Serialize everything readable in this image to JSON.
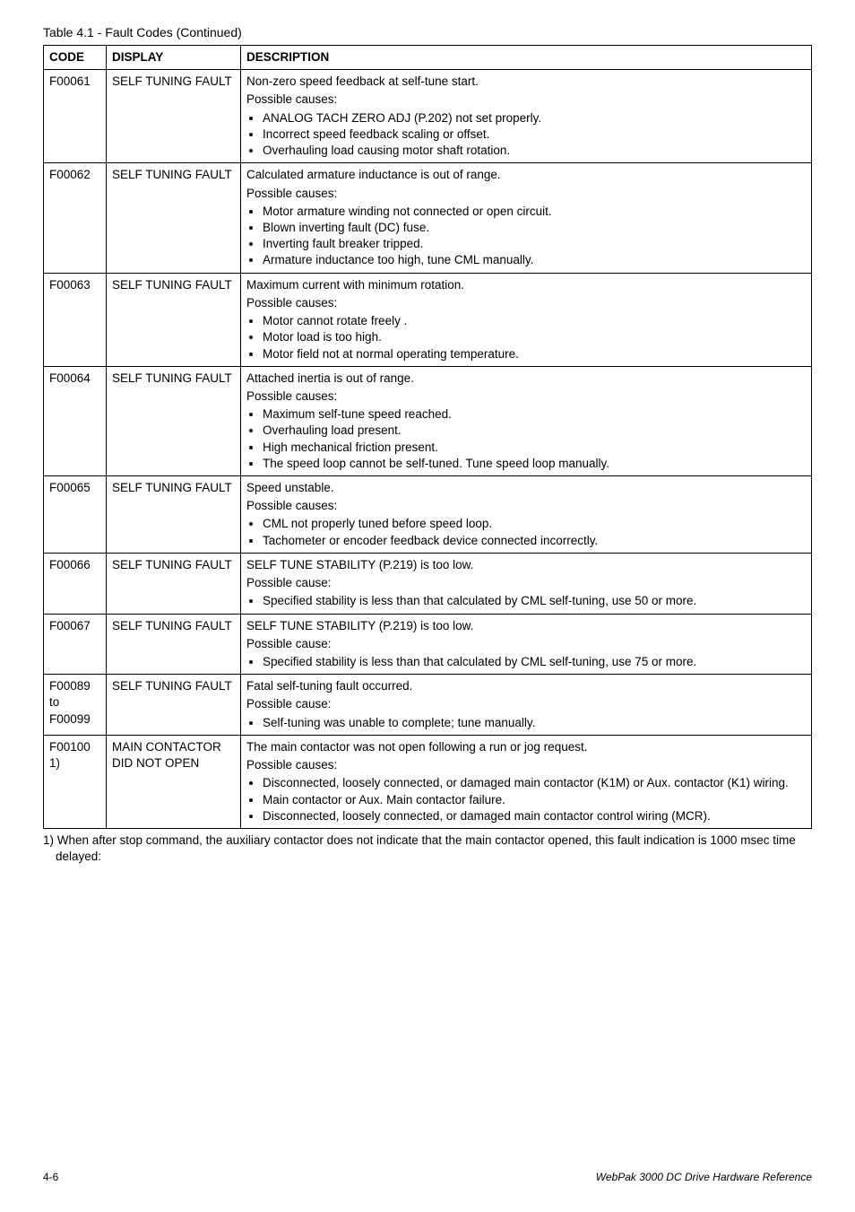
{
  "table": {
    "title": "Table 4.1 - Fault Codes (Continued)",
    "headers": {
      "code": "CODE",
      "display": "DISPLAY",
      "description": "DESCRIPTION"
    },
    "rows": [
      {
        "code": "F00061",
        "display": "SELF TUNING FAULT",
        "desc_lead": "Non-zero speed feedback at self-tune start.",
        "possible_label": "Possible causes:",
        "bullets": [
          "ANALOG TACH ZERO ADJ (P.202) not set properly.",
          "Incorrect speed feedback scaling or offset.",
          "Overhauling load causing motor shaft rotation."
        ]
      },
      {
        "code": "F00062",
        "display": "SELF TUNING FAULT",
        "desc_lead": "Calculated armature inductance is out of range.",
        "possible_label": "Possible causes:",
        "bullets": [
          "Motor armature winding not connected or open circuit.",
          "Blown inverting fault (DC) fuse.",
          "Inverting fault breaker tripped.",
          "Armature inductance too high, tune CML manually."
        ]
      },
      {
        "code": "F00063",
        "display": "SELF TUNING FAULT",
        "desc_lead": "Maximum current with minimum rotation.",
        "possible_label": "Possible causes:",
        "bullets": [
          "Motor cannot rotate freely .",
          "Motor load is too high.",
          "Motor field not at normal operating temperature."
        ]
      },
      {
        "code": "F00064",
        "display": "SELF TUNING FAULT",
        "desc_lead": "Attached inertia is out of range.",
        "possible_label": "Possible causes:",
        "bullets": [
          "Maximum self-tune speed reached.",
          "Overhauling load present.",
          "High mechanical friction present.",
          "The speed loop cannot be self-tuned. Tune speed loop manually."
        ]
      },
      {
        "code": "F00065",
        "display": "SELF TUNING FAULT",
        "desc_lead": "Speed unstable.",
        "possible_label": "Possible causes:",
        "bullets": [
          "CML not properly tuned before speed loop.",
          "Tachometer or encoder feedback device connected incorrectly."
        ]
      },
      {
        "code": "F00066",
        "display": "SELF TUNING FAULT",
        "desc_lead": "SELF TUNE STABILITY (P.219) is too low.",
        "possible_label": "Possible cause:",
        "bullets": [
          "Specified stability is less than that calculated by CML self-tuning, use 50 or more."
        ]
      },
      {
        "code": "F00067",
        "display": "SELF TUNING FAULT",
        "desc_lead": "SELF TUNE STABILITY (P.219) is too low.",
        "possible_label": "Possible cause:",
        "bullets": [
          "Specified stability is less than that calculated by CML self-tuning, use 75 or more."
        ]
      },
      {
        "code": "F00089 to F00099",
        "display": "SELF TUNING FAULT",
        "desc_lead": "Fatal self-tuning fault occurred.",
        "possible_label": "Possible cause:",
        "bullets": [
          "Self-tuning was unable to complete; tune manually."
        ]
      },
      {
        "code": "F00100 1)",
        "display": "MAIN CONTACTOR DID NOT OPEN",
        "desc_lead": "The main contactor was not open following a run or jog request.",
        "possible_label": "Possible causes:",
        "bullets": [
          "Disconnected, loosely connected, or damaged main contactor (K1M) or Aux. contactor (K1) wiring.",
          "Main contactor or Aux. Main contactor failure.",
          "Disconnected, loosely connected, or damaged main contactor control wiring (MCR)."
        ]
      }
    ],
    "footnote": "1) When after stop command, the auxiliary contactor does not indicate that the main contactor opened, this fault indication is 1000 msec time delayed:"
  },
  "footer": {
    "left": "4-6",
    "right": "WebPak 3000 DC Drive Hardware Reference"
  }
}
